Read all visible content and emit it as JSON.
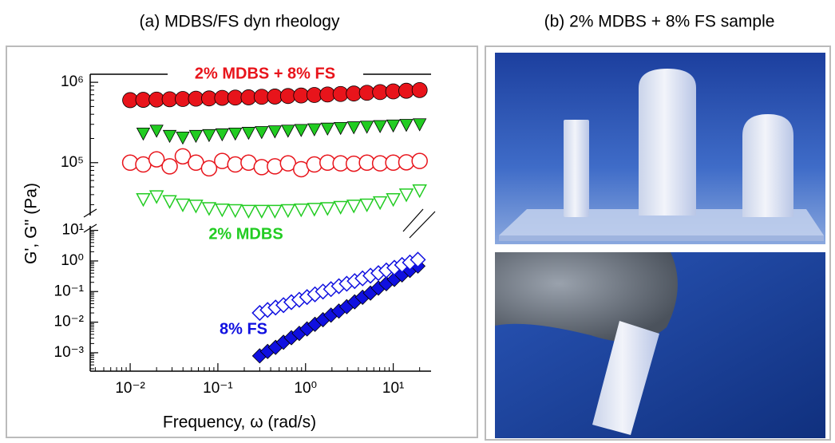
{
  "chart_data": {
    "type": "scatter",
    "title": "(a) MDBS/FS dyn rheology",
    "x_label": "Frequency, ω (rad/s)",
    "y_label": "G', G'' (Pa)",
    "xscale": "log",
    "yscale": "log",
    "xlim": [
      0.0035,
      27
    ],
    "xticks": [
      {
        "value": 0.01,
        "label": "10⁻²"
      },
      {
        "value": 0.1,
        "label": "10⁻¹"
      },
      {
        "value": 1,
        "label": "10⁰"
      },
      {
        "value": 10,
        "label": "10¹"
      }
    ],
    "y_segments": [
      {
        "ylim": [
          22000,
          1260000
        ],
        "yticks": [
          {
            "value": 100000,
            "label": "10⁵"
          },
          {
            "value": 1000000,
            "label": "10⁶"
          }
        ]
      },
      {
        "ylim": [
          0.00025,
          14
        ],
        "yticks": [
          {
            "value": 0.001,
            "label": "10⁻³"
          },
          {
            "value": 0.01,
            "label": "10⁻²"
          },
          {
            "value": 0.1,
            "label": "10⁻¹"
          },
          {
            "value": 1,
            "label": "10⁰"
          },
          {
            "value": 10,
            "label": "10¹"
          }
        ]
      }
    ],
    "groups": [
      {
        "label": "2% MDBS + 8% FS",
        "color": "#e8141b",
        "series": [
          {
            "marker": "circle",
            "filled": true,
            "x": [
              0.01,
              0.0141,
              0.02,
              0.0282,
              0.0398,
              0.0562,
              0.0794,
              0.112,
              0.158,
              0.224,
              0.316,
              0.447,
              0.631,
              0.891,
              1.26,
              1.78,
              2.51,
              3.55,
              5.01,
              7.08,
              10,
              14.1,
              20
            ],
            "values": [
              600000,
              605000,
              610000,
              615000,
              620000,
              625000,
              630000,
              640000,
              645000,
              650000,
              660000,
              665000,
              675000,
              685000,
              695000,
              705000,
              715000,
              725000,
              740000,
              755000,
              770000,
              785000,
              800000
            ]
          },
          {
            "marker": "circle",
            "filled": false,
            "x": [
              0.01,
              0.0141,
              0.02,
              0.0282,
              0.0398,
              0.0562,
              0.0794,
              0.112,
              0.158,
              0.224,
              0.316,
              0.447,
              0.631,
              0.891,
              1.26,
              1.78,
              2.51,
              3.55,
              5.01,
              7.08,
              10,
              14.1,
              20
            ],
            "values": [
              100000,
              95000,
              110000,
              90000,
              120000,
              100000,
              85000,
              105000,
              95000,
              100000,
              88000,
              90000,
              98000,
              83000,
              95000,
              100000,
              98000,
              97000,
              100000,
              98000,
              100000,
              101000,
              105000
            ]
          }
        ]
      },
      {
        "label": "2% MDBS",
        "color": "#22cc22",
        "series": [
          {
            "marker": "triangle-down",
            "filled": true,
            "x": [
              0.0141,
              0.02,
              0.0282,
              0.0398,
              0.0562,
              0.0794,
              0.112,
              0.158,
              0.224,
              0.316,
              0.447,
              0.631,
              0.891,
              1.26,
              1.78,
              2.51,
              3.55,
              5.01,
              7.08,
              10,
              14.1,
              20
            ],
            "values": [
              230000,
              250000,
              215000,
              205000,
              215000,
              220000,
              225000,
              230000,
              235000,
              240000,
              245000,
              250000,
              255000,
              260000,
              265000,
              270000,
              275000,
              280000,
              285000,
              290000,
              295000,
              300000
            ]
          },
          {
            "marker": "triangle-down",
            "filled": false,
            "x": [
              0.0141,
              0.02,
              0.0282,
              0.0398,
              0.0562,
              0.0794,
              0.112,
              0.158,
              0.224,
              0.316,
              0.447,
              0.631,
              0.891,
              1.26,
              1.78,
              2.51,
              3.55,
              5.01,
              7.08,
              10,
              14.1,
              20
            ],
            "values": [
              35000,
              38000,
              33000,
              30000,
              29000,
              27000,
              26000,
              25500,
              25000,
              25000,
              25000,
              25500,
              26000,
              26500,
              27000,
              28000,
              29000,
              30000,
              32000,
              35000,
              40000,
              45000
            ]
          }
        ]
      },
      {
        "label": "8% FS",
        "color": "#1010e0",
        "series": [
          {
            "marker": "diamond",
            "filled": true,
            "x": [
              0.3,
              0.369,
              0.455,
              0.56,
              0.689,
              0.848,
              1.04,
              1.28,
              1.58,
              1.95,
              2.4,
              2.95,
              3.63,
              4.47,
              5.5,
              6.77,
              8.34,
              10.3,
              12.6,
              15.5,
              19.1
            ],
            "values": [
              0.00079,
              0.0011,
              0.0015,
              0.0022,
              0.0031,
              0.0043,
              0.006,
              0.0085,
              0.012,
              0.017,
              0.023,
              0.032,
              0.046,
              0.065,
              0.089,
              0.13,
              0.18,
              0.25,
              0.35,
              0.49,
              0.68
            ]
          },
          {
            "marker": "diamond",
            "filled": false,
            "x": [
              0.3,
              0.369,
              0.455,
              0.56,
              0.689,
              0.848,
              1.04,
              1.28,
              1.58,
              1.95,
              2.4,
              2.95,
              3.63,
              4.47,
              5.5,
              6.77,
              8.34,
              10.3,
              12.6,
              15.5,
              19.1
            ],
            "values": [
              0.02,
              0.025,
              0.03,
              0.036,
              0.045,
              0.054,
              0.066,
              0.081,
              0.1,
              0.12,
              0.15,
              0.18,
              0.22,
              0.27,
              0.33,
              0.4,
              0.49,
              0.6,
              0.74,
              0.89,
              1.1
            ]
          }
        ]
      }
    ]
  },
  "photo_panel": {
    "title": "(b) 2% MDBS + 8% FS sample"
  }
}
